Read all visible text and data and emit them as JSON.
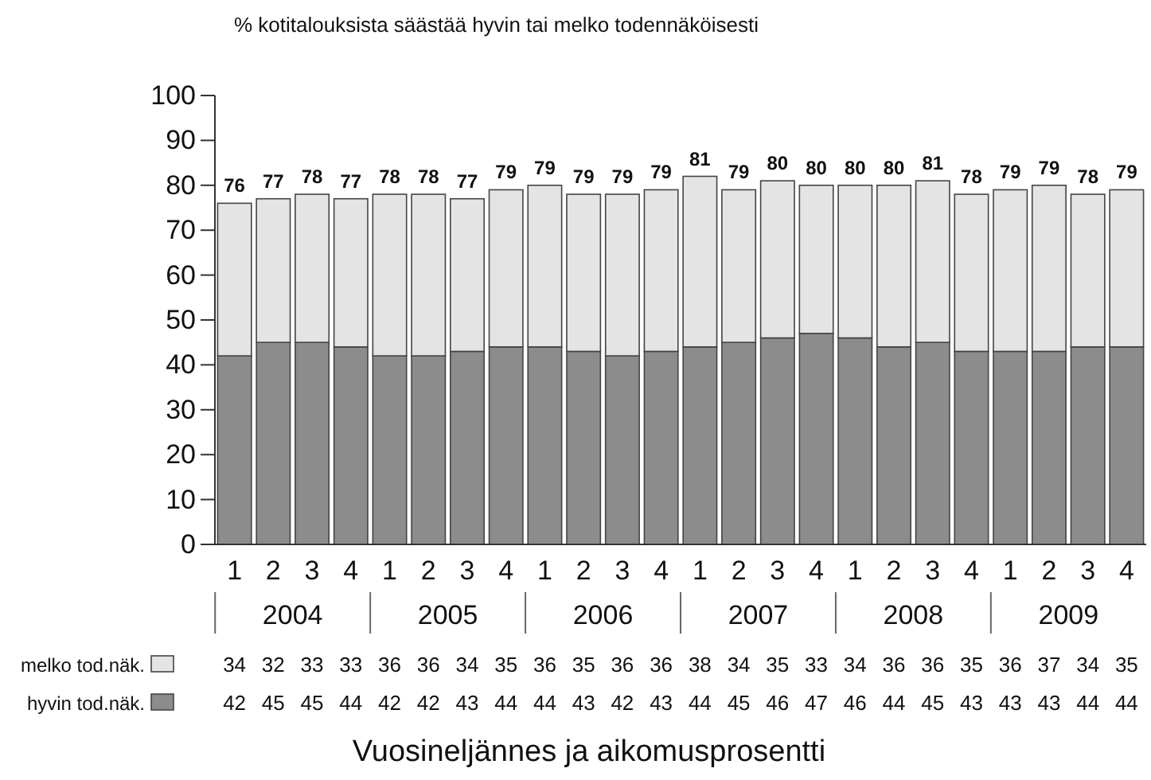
{
  "chart_data": {
    "type": "bar",
    "stacked": true,
    "ylabel": "% kotitalouksista säästää hyvin tai melko todennäköisesti",
    "xlabel": "Vuosineljännes ja aikomusprosentti",
    "categories": [
      "1",
      "2",
      "3",
      "4",
      "1",
      "2",
      "3",
      "4",
      "1",
      "2",
      "3",
      "4",
      "1",
      "2",
      "3",
      "4",
      "1",
      "2",
      "3",
      "4",
      "1",
      "2",
      "3",
      "4"
    ],
    "annotations": [
      "2004",
      "2005",
      "2006",
      "2007",
      "2008",
      "2009"
    ],
    "series": [
      {
        "name": "hyvin tod.näk.",
        "color": "#8c8c8c",
        "values": [
          42,
          45,
          45,
          44,
          42,
          42,
          43,
          44,
          44,
          43,
          42,
          43,
          44,
          45,
          46,
          47,
          46,
          44,
          45,
          43,
          43,
          43,
          44,
          44
        ]
      },
      {
        "name": "melko tod.näk.",
        "color": "#e4e4e4",
        "values": [
          34,
          32,
          33,
          33,
          36,
          36,
          34,
          35,
          36,
          35,
          36,
          36,
          38,
          34,
          35,
          33,
          34,
          36,
          36,
          35,
          36,
          37,
          34,
          35
        ]
      }
    ],
    "totals": [
      "76",
      "77",
      "78",
      "77",
      "78",
      "78",
      "77",
      "79",
      "79",
      "79",
      "79",
      "79",
      "81",
      "79",
      "80",
      "80",
      "80",
      "80",
      "81",
      "78",
      "79",
      "79",
      "78",
      "79"
    ],
    "ylim": [
      0,
      100
    ],
    "yticks": [
      0,
      10,
      20,
      30,
      40,
      50,
      60,
      70,
      80,
      90,
      100
    ],
    "data_labels": true,
    "legend": "bottom",
    "grid": false
  }
}
